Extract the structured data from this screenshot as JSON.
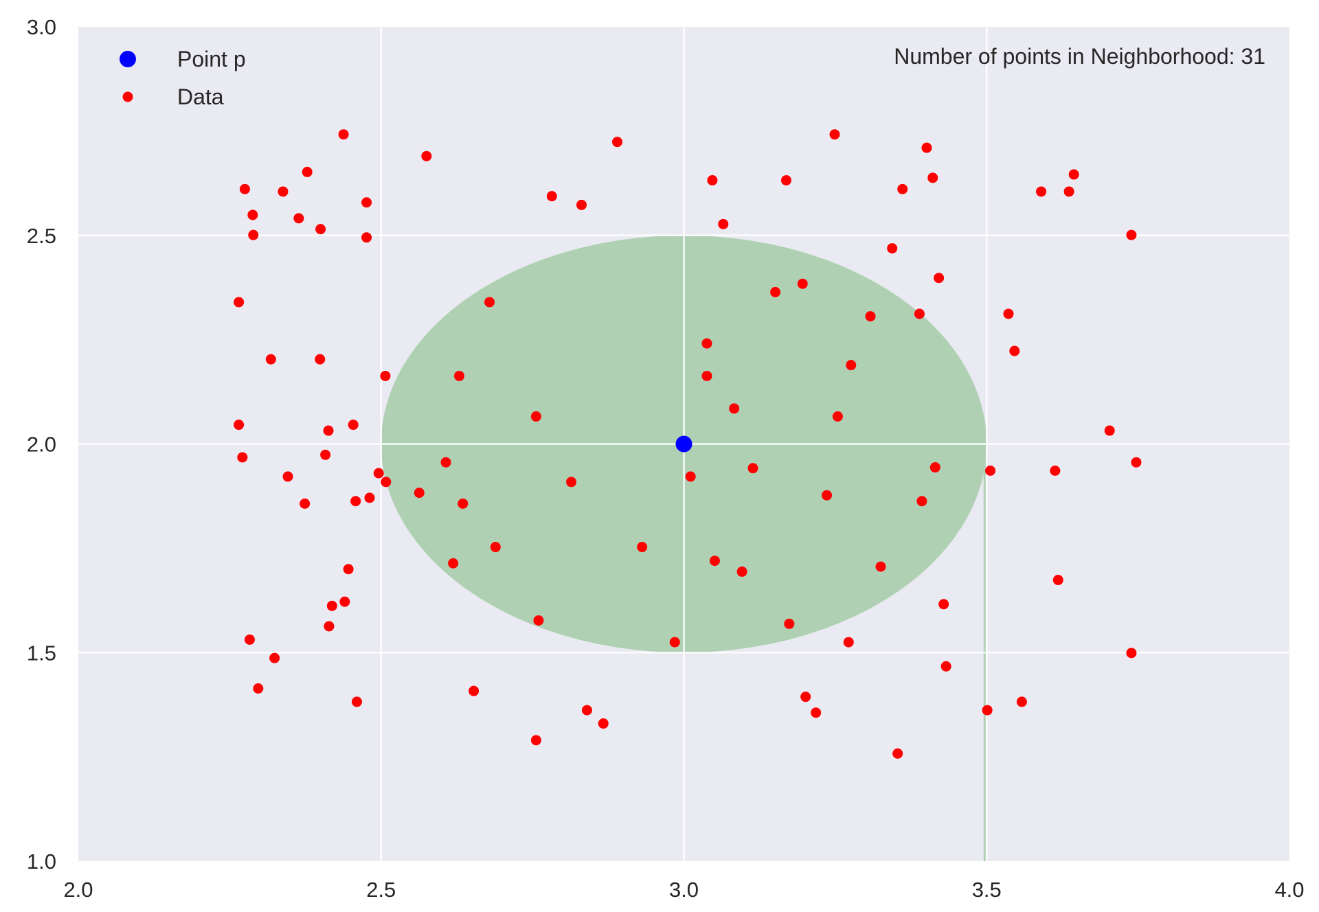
{
  "chart_data": {
    "type": "scatter",
    "title": "",
    "xlabel": "",
    "ylabel": "",
    "xlim": [
      2.0,
      4.0
    ],
    "ylim": [
      1.0,
      3.0
    ],
    "grid": true,
    "legend_position": "upper left",
    "x_ticks": [
      "2.0",
      "2.5",
      "3.0",
      "3.5",
      "4.0"
    ],
    "y_ticks": [
      "1.0",
      "1.5",
      "2.0",
      "2.5",
      "3.0"
    ],
    "annotation": "Number of points in Neighborhood: 31",
    "legend": [
      {
        "label": "Point p",
        "color": "#0000ff",
        "marker": "large-circle"
      },
      {
        "label": "Data",
        "color": "#ff0000",
        "marker": "small-circle"
      }
    ],
    "neighborhood": {
      "center": [
        3.0,
        2.0
      ],
      "radius": 0.5,
      "color": "#b0d0b4"
    },
    "series": [
      {
        "name": "Point p",
        "color": "#0000ff",
        "points": [
          [
            3.0,
            2.0
          ]
        ]
      },
      {
        "name": "Data",
        "color": "#ff0000",
        "points": [
          [
            2.438,
            2.742
          ],
          [
            2.275,
            2.611
          ],
          [
            2.338,
            2.605
          ],
          [
            2.378,
            2.652
          ],
          [
            2.288,
            2.549
          ],
          [
            2.364,
            2.541
          ],
          [
            2.4,
            2.515
          ],
          [
            2.289,
            2.501
          ],
          [
            2.476,
            2.579
          ],
          [
            2.476,
            2.495
          ],
          [
            2.575,
            2.69
          ],
          [
            2.89,
            2.724
          ],
          [
            2.782,
            2.594
          ],
          [
            2.831,
            2.573
          ],
          [
            2.265,
            2.34
          ],
          [
            2.318,
            2.203
          ],
          [
            2.399,
            2.203
          ],
          [
            2.679,
            2.34
          ],
          [
            2.507,
            2.163
          ],
          [
            2.629,
            2.163
          ],
          [
            2.265,
            2.046
          ],
          [
            2.271,
            1.968
          ],
          [
            2.413,
            2.032
          ],
          [
            2.454,
            2.046
          ],
          [
            2.408,
            1.974
          ],
          [
            2.346,
            1.922
          ],
          [
            2.374,
            1.857
          ],
          [
            2.458,
            1.863
          ],
          [
            2.481,
            1.871
          ],
          [
            2.496,
            1.93
          ],
          [
            2.508,
            1.909
          ],
          [
            2.563,
            1.883
          ],
          [
            2.607,
            1.956
          ],
          [
            2.635,
            1.857
          ],
          [
            2.756,
            2.066
          ],
          [
            2.814,
            1.909
          ],
          [
            2.689,
            1.753
          ],
          [
            2.619,
            1.714
          ],
          [
            2.446,
            1.7
          ],
          [
            2.419,
            1.612
          ],
          [
            2.44,
            1.622
          ],
          [
            2.414,
            1.563
          ],
          [
            2.283,
            1.531
          ],
          [
            2.324,
            1.487
          ],
          [
            2.297,
            1.414
          ],
          [
            2.46,
            1.382
          ],
          [
            2.653,
            1.408
          ],
          [
            2.76,
            1.577
          ],
          [
            2.756,
            1.29
          ],
          [
            2.84,
            1.362
          ],
          [
            2.867,
            1.33
          ],
          [
            2.931,
            1.753
          ],
          [
            2.985,
            1.525
          ],
          [
            3.011,
            1.922
          ],
          [
            3.051,
            1.72
          ],
          [
            3.096,
            1.694
          ],
          [
            3.114,
            1.942
          ],
          [
            3.083,
            2.085
          ],
          [
            3.038,
            2.163
          ],
          [
            3.038,
            2.241
          ],
          [
            3.151,
            2.364
          ],
          [
            3.196,
            2.384
          ],
          [
            3.065,
            2.527
          ],
          [
            3.047,
            2.632
          ],
          [
            3.169,
            2.632
          ],
          [
            3.249,
            2.742
          ],
          [
            3.276,
            2.189
          ],
          [
            3.254,
            2.066
          ],
          [
            3.236,
            1.877
          ],
          [
            3.308,
            2.306
          ],
          [
            3.344,
            2.469
          ],
          [
            3.389,
            2.312
          ],
          [
            3.421,
            2.398
          ],
          [
            3.361,
            2.611
          ],
          [
            3.411,
            2.638
          ],
          [
            3.401,
            2.71
          ],
          [
            3.415,
            1.944
          ],
          [
            3.393,
            1.863
          ],
          [
            3.325,
            1.706
          ],
          [
            3.174,
            1.569
          ],
          [
            3.272,
            1.525
          ],
          [
            3.201,
            1.394
          ],
          [
            3.218,
            1.356
          ],
          [
            3.353,
            1.258
          ],
          [
            3.429,
            1.616
          ],
          [
            3.433,
            1.467
          ],
          [
            3.506,
            1.936
          ],
          [
            3.501,
            1.362
          ],
          [
            3.558,
            1.382
          ],
          [
            3.536,
            2.312
          ],
          [
            3.546,
            2.223
          ],
          [
            3.59,
            2.605
          ],
          [
            3.636,
            2.605
          ],
          [
            3.644,
            2.646
          ],
          [
            3.739,
            2.501
          ],
          [
            3.703,
            2.032
          ],
          [
            3.747,
            1.956
          ],
          [
            3.613,
            1.936
          ],
          [
            3.618,
            1.674
          ],
          [
            3.739,
            1.499
          ]
        ]
      }
    ]
  },
  "colors": {
    "plot_background": "#eaeaf2",
    "grid": "#ffffff",
    "point_p": "#0000ff",
    "data": "#ff0000",
    "neighborhood_fill": "#b0d0b4"
  }
}
